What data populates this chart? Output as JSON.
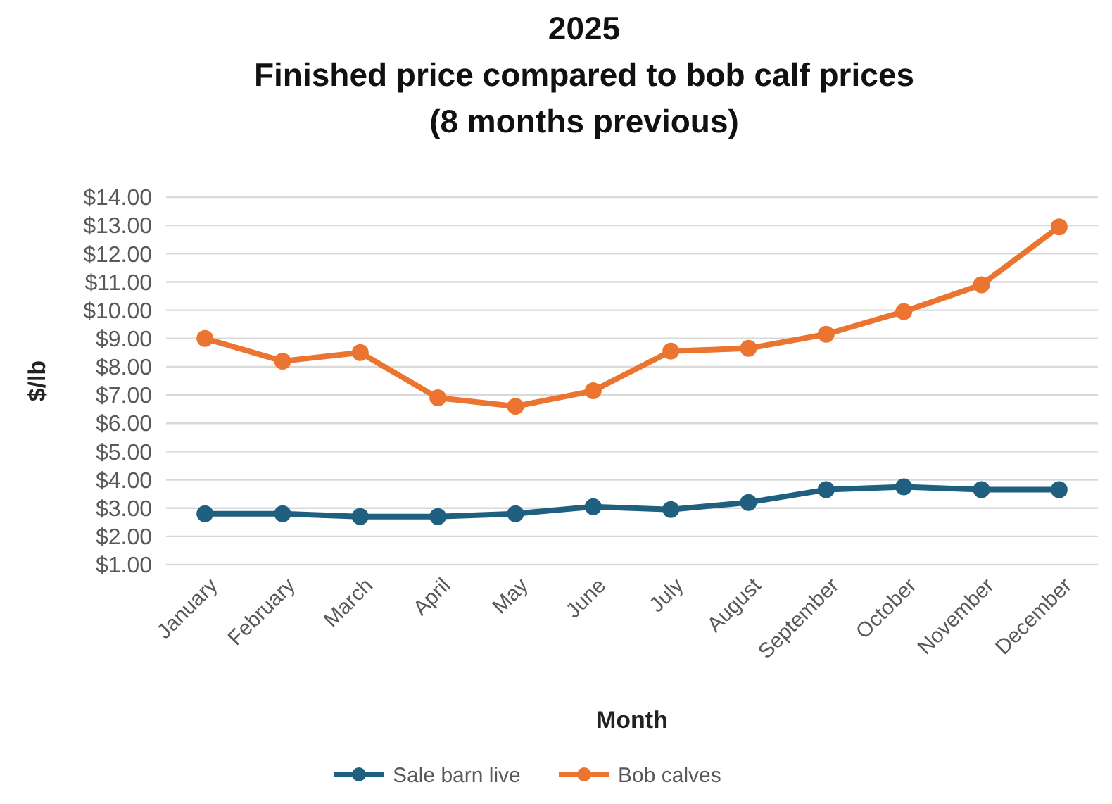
{
  "chart_data": {
    "type": "line",
    "title": "2025\nFinished price compared to bob calf prices\n(8 months previous)",
    "xlabel": "Month",
    "ylabel": "$/lb",
    "categories": [
      "January",
      "February",
      "March",
      "April",
      "May",
      "June",
      "July",
      "August",
      "September",
      "October",
      "November",
      "December"
    ],
    "series": [
      {
        "name": "Sale barn live",
        "color": "#1f5f7f",
        "values": [
          2.8,
          2.8,
          2.7,
          2.7,
          2.8,
          3.05,
          2.95,
          3.2,
          3.65,
          3.75,
          3.65,
          3.65
        ]
      },
      {
        "name": "Bob calves",
        "color": "#ec7431",
        "values": [
          9.0,
          8.2,
          8.5,
          6.9,
          6.6,
          7.15,
          8.55,
          8.65,
          9.15,
          9.95,
          10.9,
          12.95
        ]
      }
    ],
    "ylim": [
      1,
      14
    ],
    "yticks": [
      {
        "value": 1,
        "label": "$1.00"
      },
      {
        "value": 2,
        "label": "$2.00"
      },
      {
        "value": 3,
        "label": "$3.00"
      },
      {
        "value": 4,
        "label": "$4.00"
      },
      {
        "value": 5,
        "label": "$5.00"
      },
      {
        "value": 6,
        "label": "$6.00"
      },
      {
        "value": 7,
        "label": "$7.00"
      },
      {
        "value": 8,
        "label": "$8.00"
      },
      {
        "value": 9,
        "label": "$9.00"
      },
      {
        "value": 10,
        "label": "$10.00"
      },
      {
        "value": 11,
        "label": "$11.00"
      },
      {
        "value": 12,
        "label": "$12.00"
      },
      {
        "value": 13,
        "label": "$13.00"
      },
      {
        "value": 14,
        "label": "$14.00"
      }
    ],
    "grid": "y",
    "legend": "bottom",
    "marker": "circle",
    "line_style": "solid"
  }
}
